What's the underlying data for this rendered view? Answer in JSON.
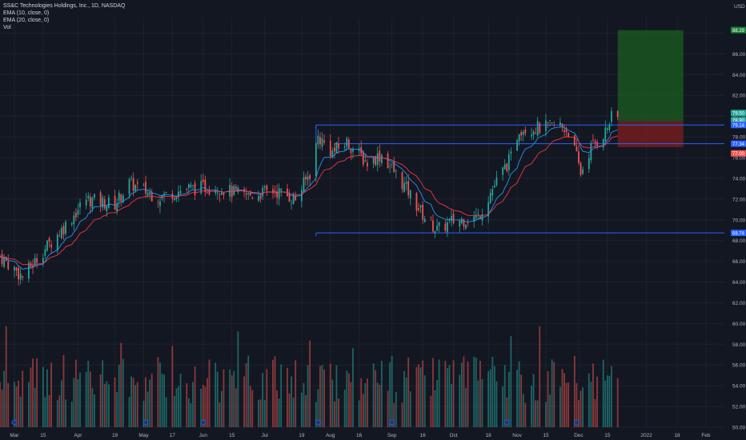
{
  "legend": {
    "title": "SS&C Technologies Holdings, Inc., 1D, NASDAQ",
    "ema10": "EMA (10, close, 0)",
    "ema20": "EMA (20, close, 0)",
    "vol": "Vol"
  },
  "colors": {
    "background": "#131722",
    "grid": "#1e222d",
    "up": "#26a69a",
    "down": "#ef5350",
    "ema10": "#2196f3",
    "ema20": "#f23645",
    "level_line": "#2962ff",
    "profit_zone": "#1b5e20",
    "loss_zone": "#7f1d1d"
  },
  "axis": {
    "currency": "USD",
    "y_labels": [
      "86.00",
      "84.00",
      "82.00",
      "80.00",
      "78.00",
      "76.00",
      "74.00",
      "72.00",
      "70.00",
      "68.00",
      "66.00",
      "64.00",
      "62.00",
      "60.00",
      "58.00",
      "56.00",
      "54.00",
      "52.00",
      "50.00"
    ],
    "x_labels": [
      "Mar",
      "15",
      "Apr",
      "19",
      "May",
      "17",
      "Jun",
      "15",
      "Jul",
      "19",
      "Aug",
      "16",
      "Sep",
      "16",
      "Oct",
      "18",
      "Nov",
      "15",
      "Dec",
      "15",
      "2022",
      "18",
      "Feb"
    ],
    "badges": [
      "88.29",
      "79.50",
      "78.90",
      "79.14",
      "77.34",
      "77.00",
      "68.74"
    ]
  },
  "chart_data": {
    "type": "candlestick",
    "title": "SS&C Technologies Holdings, Inc., 1D, NASDAQ",
    "y_range": [
      50,
      89.5
    ],
    "x_range": [
      "2021-02-22",
      "2022-02-10"
    ],
    "price_keypoints": [
      [
        "2021-02-22",
        66.5
      ],
      [
        "2021-03-05",
        64.5
      ],
      [
        "2021-03-15",
        67.0
      ],
      [
        "2021-03-26",
        69.5
      ],
      [
        "2021-04-05",
        72.0
      ],
      [
        "2021-04-19",
        71.5
      ],
      [
        "2021-04-26",
        73.5
      ],
      [
        "2021-05-10",
        72.2
      ],
      [
        "2021-05-24",
        73.0
      ],
      [
        "2021-06-07",
        73.2
      ],
      [
        "2021-06-21",
        72.3
      ],
      [
        "2021-07-06",
        72.8
      ],
      [
        "2021-07-16",
        72.0
      ],
      [
        "2021-07-23",
        74.5
      ],
      [
        "2021-07-27",
        78.0
      ],
      [
        "2021-08-03",
        76.5
      ],
      [
        "2021-08-10",
        77.5
      ],
      [
        "2021-08-20",
        75.5
      ],
      [
        "2021-08-27",
        76.3
      ],
      [
        "2021-09-08",
        73.0
      ],
      [
        "2021-09-16",
        70.5
      ],
      [
        "2021-09-23",
        69.0
      ],
      [
        "2021-09-30",
        69.8
      ],
      [
        "2021-10-13",
        70.3
      ],
      [
        "2021-10-20",
        73.0
      ],
      [
        "2021-10-29",
        76.0
      ],
      [
        "2021-11-02",
        78.8
      ],
      [
        "2021-11-15",
        78.9
      ],
      [
        "2021-11-22",
        79.1
      ],
      [
        "2021-11-26",
        78.5
      ],
      [
        "2021-11-30",
        76.0
      ],
      [
        "2021-12-02",
        74.5
      ],
      [
        "2021-12-07",
        77.0
      ],
      [
        "2021-12-14",
        78.5
      ],
      [
        "2021-12-17",
        79.8
      ]
    ],
    "series": [
      {
        "name": "EMA (10, close, 0)",
        "color": "#2196f3"
      },
      {
        "name": "EMA (20, close, 0)",
        "color": "#f23645"
      },
      {
        "name": "Vol"
      }
    ],
    "levels": [
      {
        "value": 79.14,
        "from": "2021-07-26",
        "to": "2022-02-10"
      },
      {
        "value": 77.34,
        "from": "2021-08-04",
        "to": "2022-02-10"
      },
      {
        "value": 68.74,
        "from": "2021-07-26",
        "to": "2022-02-10"
      }
    ],
    "position": {
      "type": "long",
      "from": "2021-12-20",
      "to": "2022-01-21",
      "entry": 79.5,
      "target": 88.29,
      "stop": 77.0
    },
    "volume_scale_note": "volume bars occupy lower pane, relative heights"
  }
}
